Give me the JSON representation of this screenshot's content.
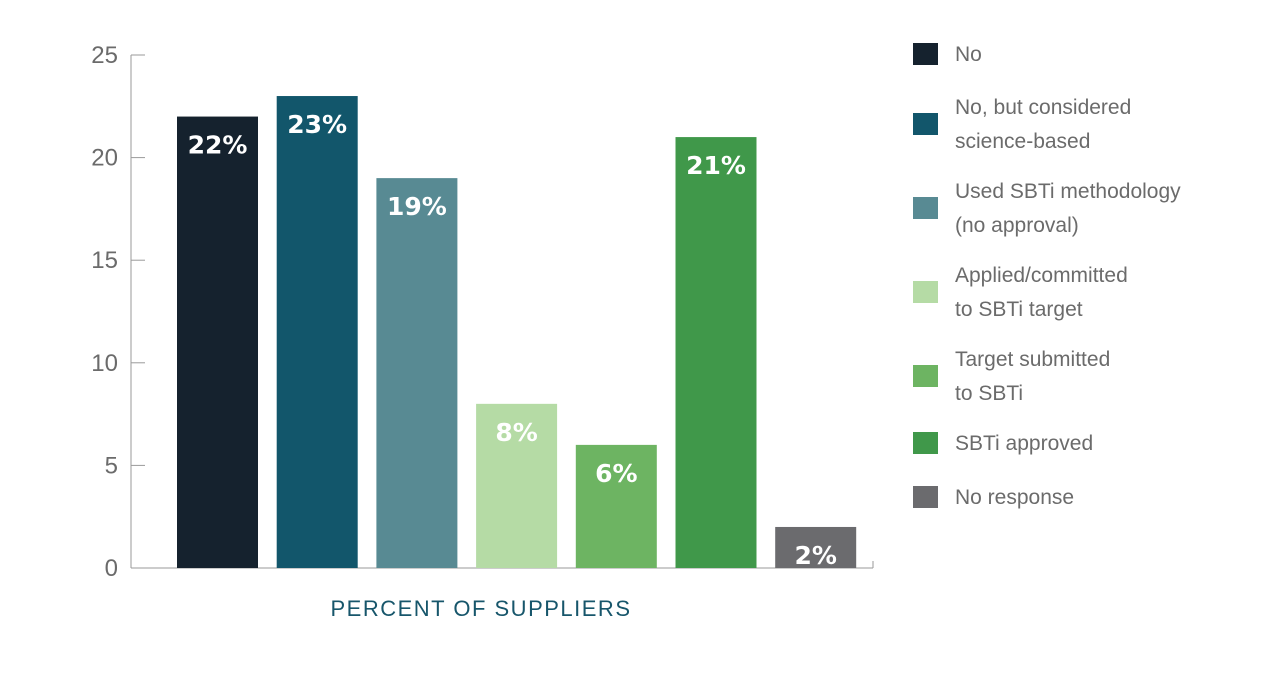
{
  "chart_data": {
    "type": "bar",
    "title": "",
    "xlabel": "PERCENT OF SUPPLIERS",
    "ylabel": "",
    "ylim": [
      0,
      25
    ],
    "yticks": [
      0,
      5,
      10,
      15,
      20,
      25
    ],
    "grid": false,
    "legend_position": "right",
    "categories": [
      "No",
      "No, but considered science-based",
      "Used SBTi methodology (no approval)",
      "Applied/committed to SBTi target",
      "Target submitted to SBTi",
      "SBTi approved",
      "No response"
    ],
    "values": [
      22,
      23,
      19,
      8,
      6,
      21,
      2
    ],
    "data_labels": [
      "22%",
      "23%",
      "19%",
      "8%",
      "6%",
      "21%",
      "2%"
    ],
    "colors": [
      "#15222e",
      "#12566b",
      "#588a93",
      "#b5dba5",
      "#6db462",
      "#40984a",
      "#6b6b6e"
    ],
    "legend": [
      {
        "lines": [
          "No"
        ]
      },
      {
        "lines": [
          "No, but considered",
          "science-based"
        ]
      },
      {
        "lines": [
          "Used SBTi methodology",
          "(no approval)"
        ]
      },
      {
        "lines": [
          "Applied/committed",
          "to SBTi target"
        ]
      },
      {
        "lines": [
          "Target submitted",
          "to SBTi"
        ]
      },
      {
        "lines": [
          "SBTi approved"
        ]
      },
      {
        "lines": [
          "No response"
        ]
      }
    ]
  }
}
